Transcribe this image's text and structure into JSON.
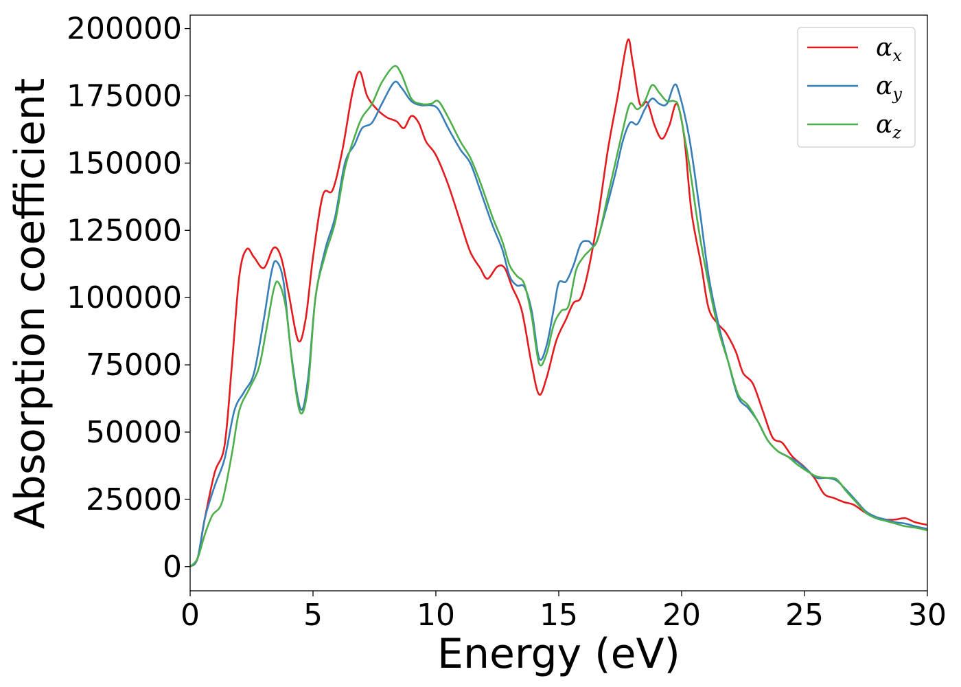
{
  "chart_data": {
    "type": "line",
    "title": "",
    "xlabel": "Energy (eV)",
    "ylabel": "Absorption coefficient",
    "xlim": [
      0,
      30
    ],
    "ylim": [
      -9000,
      205000
    ],
    "xticks": [
      0,
      5,
      10,
      15,
      20,
      25,
      30
    ],
    "yticks": [
      0,
      25000,
      50000,
      75000,
      100000,
      125000,
      150000,
      175000,
      200000
    ],
    "grid": false,
    "legend_position": "top-right",
    "series": [
      {
        "name": "α",
        "subscript": "x",
        "color": "#e41a1c",
        "points": [
          [
            0,
            0
          ],
          [
            0.3,
            3000
          ],
          [
            0.6,
            18000
          ],
          [
            1,
            35000
          ],
          [
            1.4,
            45000
          ],
          [
            1.7,
            75000
          ],
          [
            2,
            108000
          ],
          [
            2.3,
            118000
          ],
          [
            2.6,
            115000
          ],
          [
            3,
            111000
          ],
          [
            3.4,
            118500
          ],
          [
            3.7,
            115000
          ],
          [
            4,
            102000
          ],
          [
            4.4,
            84000
          ],
          [
            4.7,
            92000
          ],
          [
            5,
            115000
          ],
          [
            5.4,
            138000
          ],
          [
            5.8,
            140000
          ],
          [
            6.2,
            155000
          ],
          [
            6.6,
            176000
          ],
          [
            6.9,
            184000
          ],
          [
            7.2,
            175000
          ],
          [
            7.6,
            170000
          ],
          [
            8,
            167000
          ],
          [
            8.4,
            165500
          ],
          [
            8.7,
            163000
          ],
          [
            9,
            167500
          ],
          [
            9.3,
            165000
          ],
          [
            9.6,
            158000
          ],
          [
            10,
            153000
          ],
          [
            10.5,
            142000
          ],
          [
            11,
            128000
          ],
          [
            11.4,
            117000
          ],
          [
            11.8,
            111000
          ],
          [
            12.1,
            107000
          ],
          [
            12.5,
            111500
          ],
          [
            12.8,
            111000
          ],
          [
            13.1,
            104000
          ],
          [
            13.5,
            95000
          ],
          [
            13.9,
            75000
          ],
          [
            14.2,
            64000
          ],
          [
            14.5,
            70000
          ],
          [
            14.9,
            84000
          ],
          [
            15.3,
            92000
          ],
          [
            15.6,
            98000
          ],
          [
            15.9,
            100000
          ],
          [
            16.2,
            110000
          ],
          [
            16.6,
            130000
          ],
          [
            17,
            155000
          ],
          [
            17.4,
            175000
          ],
          [
            17.8,
            195500
          ],
          [
            18,
            188000
          ],
          [
            18.3,
            172000
          ],
          [
            18.6,
            172500
          ],
          [
            18.9,
            164000
          ],
          [
            19.2,
            159000
          ],
          [
            19.5,
            164000
          ],
          [
            19.8,
            172000
          ],
          [
            20.1,
            160000
          ],
          [
            20.4,
            132000
          ],
          [
            20.8,
            112000
          ],
          [
            21.1,
            96000
          ],
          [
            21.5,
            90000
          ],
          [
            21.8,
            87000
          ],
          [
            22.2,
            80000
          ],
          [
            22.5,
            72000
          ],
          [
            22.9,
            68000
          ],
          [
            23.3,
            58000
          ],
          [
            23.7,
            48000
          ],
          [
            24.1,
            46000
          ],
          [
            24.5,
            41000
          ],
          [
            25,
            37000
          ],
          [
            25.4,
            33000
          ],
          [
            25.8,
            27000
          ],
          [
            26.2,
            25500
          ],
          [
            26.6,
            24000
          ],
          [
            27,
            23000
          ],
          [
            27.4,
            20500
          ],
          [
            27.8,
            18500
          ],
          [
            28.3,
            17500
          ],
          [
            28.7,
            17500
          ],
          [
            29.1,
            18000
          ],
          [
            29.5,
            16500
          ],
          [
            30,
            15500
          ]
        ]
      },
      {
        "name": "α",
        "subscript": "y",
        "color": "#377eb8",
        "points": [
          [
            0,
            0
          ],
          [
            0.3,
            3000
          ],
          [
            0.6,
            18000
          ],
          [
            1,
            30000
          ],
          [
            1.4,
            40000
          ],
          [
            1.8,
            58000
          ],
          [
            2.2,
            65000
          ],
          [
            2.6,
            72000
          ],
          [
            3,
            92000
          ],
          [
            3.3,
            109000
          ],
          [
            3.5,
            113500
          ],
          [
            3.8,
            106000
          ],
          [
            4.1,
            80000
          ],
          [
            4.5,
            58500
          ],
          [
            4.8,
            70000
          ],
          [
            5.1,
            100000
          ],
          [
            5.5,
            118000
          ],
          [
            5.9,
            130000
          ],
          [
            6.3,
            150000
          ],
          [
            6.7,
            157000
          ],
          [
            7,
            163000
          ],
          [
            7.4,
            165000
          ],
          [
            7.8,
            172000
          ],
          [
            8.3,
            180000
          ],
          [
            8.6,
            178000
          ],
          [
            9,
            173000
          ],
          [
            9.4,
            171500
          ],
          [
            9.8,
            171500
          ],
          [
            10.1,
            170000
          ],
          [
            10.5,
            163000
          ],
          [
            11,
            155000
          ],
          [
            11.4,
            150000
          ],
          [
            11.8,
            140000
          ],
          [
            12.3,
            127000
          ],
          [
            12.7,
            118000
          ],
          [
            13,
            108000
          ],
          [
            13.3,
            104500
          ],
          [
            13.6,
            104000
          ],
          [
            13.9,
            95000
          ],
          [
            14.2,
            77500
          ],
          [
            14.5,
            82000
          ],
          [
            14.8,
            96000
          ],
          [
            15,
            105500
          ],
          [
            15.3,
            106000
          ],
          [
            15.6,
            112000
          ],
          [
            15.9,
            120000
          ],
          [
            16.2,
            121000
          ],
          [
            16.5,
            120000
          ],
          [
            16.9,
            132000
          ],
          [
            17.3,
            146000
          ],
          [
            17.6,
            158000
          ],
          [
            17.9,
            165000
          ],
          [
            18.2,
            164500
          ],
          [
            18.5,
            170000
          ],
          [
            18.8,
            174000
          ],
          [
            19.1,
            172000
          ],
          [
            19.4,
            172000
          ],
          [
            19.7,
            179000
          ],
          [
            19.9,
            176000
          ],
          [
            20.3,
            160000
          ],
          [
            20.7,
            135000
          ],
          [
            21.1,
            108000
          ],
          [
            21.5,
            90000
          ],
          [
            21.9,
            76000
          ],
          [
            22.3,
            63000
          ],
          [
            22.7,
            59000
          ],
          [
            23.1,
            54000
          ],
          [
            23.5,
            47000
          ],
          [
            23.9,
            43000
          ],
          [
            24.3,
            41000
          ],
          [
            24.7,
            39000
          ],
          [
            25.1,
            36000
          ],
          [
            25.5,
            33000
          ],
          [
            25.9,
            33000
          ],
          [
            26.3,
            32000
          ],
          [
            26.7,
            28500
          ],
          [
            27.1,
            24500
          ],
          [
            27.5,
            20500
          ],
          [
            27.9,
            18500
          ],
          [
            28.3,
            17500
          ],
          [
            28.7,
            16500
          ],
          [
            29.1,
            16000
          ],
          [
            29.5,
            15000
          ],
          [
            30,
            14000
          ]
        ]
      },
      {
        "name": "α",
        "subscript": "z",
        "color": "#4daf4a",
        "points": [
          [
            0,
            0
          ],
          [
            0.3,
            3000
          ],
          [
            0.6,
            12000
          ],
          [
            0.9,
            19000
          ],
          [
            1.3,
            24000
          ],
          [
            1.7,
            42000
          ],
          [
            2,
            58000
          ],
          [
            2.4,
            66000
          ],
          [
            2.8,
            74000
          ],
          [
            3.1,
            88000
          ],
          [
            3.4,
            103000
          ],
          [
            3.6,
            105500
          ],
          [
            3.9,
            96000
          ],
          [
            4.2,
            72000
          ],
          [
            4.5,
            57000
          ],
          [
            4.8,
            67000
          ],
          [
            5.1,
            100000
          ],
          [
            5.5,
            116000
          ],
          [
            5.9,
            128000
          ],
          [
            6.3,
            148000
          ],
          [
            6.7,
            160000
          ],
          [
            7,
            167000
          ],
          [
            7.4,
            172000
          ],
          [
            7.8,
            180000
          ],
          [
            8.3,
            186000
          ],
          [
            8.6,
            183000
          ],
          [
            9,
            174000
          ],
          [
            9.4,
            172000
          ],
          [
            9.8,
            172000
          ],
          [
            10.1,
            173000
          ],
          [
            10.5,
            167000
          ],
          [
            11,
            158000
          ],
          [
            11.4,
            152000
          ],
          [
            11.8,
            143000
          ],
          [
            12.3,
            130000
          ],
          [
            12.7,
            121000
          ],
          [
            13,
            112000
          ],
          [
            13.3,
            108000
          ],
          [
            13.6,
            105000
          ],
          [
            13.9,
            93000
          ],
          [
            14.2,
            75500
          ],
          [
            14.5,
            79000
          ],
          [
            14.8,
            90000
          ],
          [
            15.1,
            95000
          ],
          [
            15.4,
            97000
          ],
          [
            15.7,
            110000
          ],
          [
            16,
            115000
          ],
          [
            16.3,
            118000
          ],
          [
            16.6,
            122000
          ],
          [
            17,
            138000
          ],
          [
            17.3,
            150000
          ],
          [
            17.6,
            162000
          ],
          [
            17.9,
            172000
          ],
          [
            18.2,
            170000
          ],
          [
            18.5,
            173000
          ],
          [
            18.8,
            179000
          ],
          [
            19.1,
            176000
          ],
          [
            19.4,
            173000
          ],
          [
            19.7,
            173000
          ],
          [
            19.9,
            170000
          ],
          [
            20.3,
            150000
          ],
          [
            20.7,
            125000
          ],
          [
            21.1,
            105000
          ],
          [
            21.5,
            88000
          ],
          [
            21.9,
            76000
          ],
          [
            22.3,
            64000
          ],
          [
            22.7,
            60000
          ],
          [
            23.1,
            54000
          ],
          [
            23.5,
            47000
          ],
          [
            23.9,
            43000
          ],
          [
            24.3,
            41000
          ],
          [
            24.7,
            38000
          ],
          [
            25.1,
            35500
          ],
          [
            25.5,
            33500
          ],
          [
            25.9,
            33000
          ],
          [
            26.3,
            32500
          ],
          [
            26.7,
            28000
          ],
          [
            27.1,
            24000
          ],
          [
            27.5,
            20000
          ],
          [
            27.9,
            18000
          ],
          [
            28.3,
            17000
          ],
          [
            28.7,
            16000
          ],
          [
            29.1,
            15000
          ],
          [
            29.5,
            14500
          ],
          [
            30,
            13500
          ]
        ]
      }
    ]
  }
}
